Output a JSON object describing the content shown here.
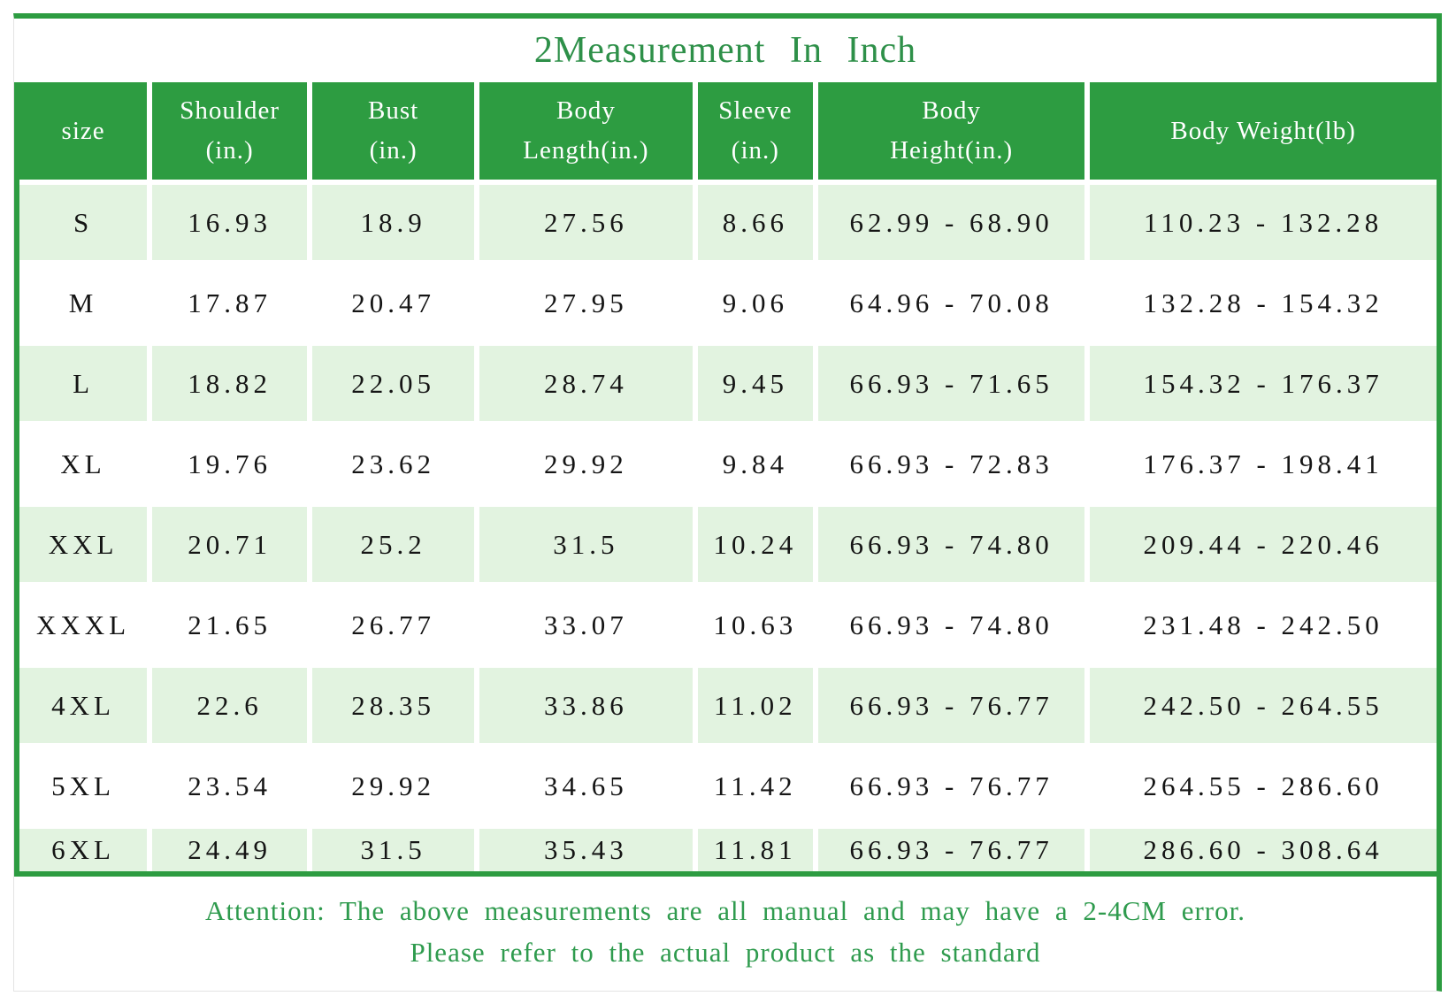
{
  "title": "2Measurement In Inch",
  "colors": {
    "accent_green": "#2d9c41",
    "title_green": "#2e9049",
    "row_light_green": "#e2f3e0",
    "cell_text": "#151515"
  },
  "table": {
    "columns": [
      {
        "label": "size",
        "sub": ""
      },
      {
        "label": "Shoulder",
        "sub": "(in.)"
      },
      {
        "label": "Bust",
        "sub": "(in.)"
      },
      {
        "label": "Body",
        "sub": "Length(in.)"
      },
      {
        "label": "Sleeve",
        "sub": "(in.)"
      },
      {
        "label": "Body",
        "sub": "Height(in.)"
      },
      {
        "label": "Body Weight(lb)",
        "sub": ""
      }
    ],
    "rows": [
      [
        "S",
        "16.93",
        "18.9",
        "27.56",
        "8.66",
        "62.99 - 68.90",
        "110.23 - 132.28"
      ],
      [
        "M",
        "17.87",
        "20.47",
        "27.95",
        "9.06",
        "64.96 - 70.08",
        "132.28 - 154.32"
      ],
      [
        "L",
        "18.82",
        "22.05",
        "28.74",
        "9.45",
        "66.93 - 71.65",
        "154.32 - 176.37"
      ],
      [
        "XL",
        "19.76",
        "23.62",
        "29.92",
        "9.84",
        "66.93 - 72.83",
        "176.37 - 198.41"
      ],
      [
        "XXL",
        "20.71",
        "25.2",
        "31.5",
        "10.24",
        "66.93 - 74.80",
        "209.44 - 220.46"
      ],
      [
        "XXXL",
        "21.65",
        "26.77",
        "33.07",
        "10.63",
        "66.93 - 74.80",
        "231.48 - 242.50"
      ],
      [
        "4XL",
        "22.6",
        "28.35",
        "33.86",
        "11.02",
        "66.93 - 76.77",
        "242.50 - 264.55"
      ],
      [
        "5XL",
        "23.54",
        "29.92",
        "34.65",
        "11.42",
        "66.93 - 76.77",
        "264.55 - 286.60"
      ],
      [
        "6XL",
        "24.49",
        "31.5",
        "35.43",
        "11.81",
        "66.93 - 76.77",
        "286.60 - 308.64"
      ]
    ]
  },
  "attention": {
    "line1": "Attention: The above measurements are all manual and may have a 2-4CM error.",
    "line2": "Please refer to the actual product as the standard"
  }
}
